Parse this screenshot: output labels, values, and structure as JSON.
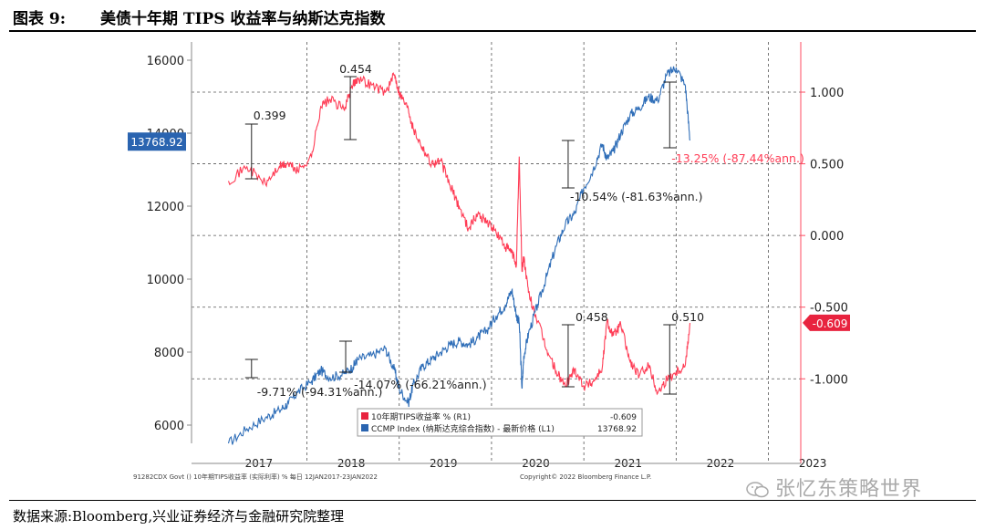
{
  "header": {
    "figure_label": "图表 9:",
    "title": "美债十年期 TIPS 收益率与纳斯达克指数"
  },
  "footer": {
    "source": "数据来源:Bloomberg,兴业证券经济与金融研究院整理",
    "watermark": "张忆东策略世界"
  },
  "chart_data": {
    "type": "line",
    "title": "",
    "x_ticks": [
      "2017",
      "2018",
      "2019",
      "2020",
      "2021",
      "2022",
      "2023"
    ],
    "left_axis": {
      "ticks": [
        "16000",
        "14000",
        "12000",
        "10000",
        "8000",
        "6000"
      ],
      "ylim": [
        5500,
        16500
      ]
    },
    "right_axis": {
      "ticks": [
        "1.000",
        "0.500",
        "0.000",
        "-0.500",
        "-1.000"
      ],
      "ylim": [
        -1.45,
        1.35
      ]
    },
    "series": [
      {
        "name": "10年期TIPS收益率 % (R1)",
        "axis": "right",
        "color": "#ff3c55",
        "last_value": "-0.609",
        "x": [
          2017.05,
          2017.25,
          2017.45,
          2017.6,
          2017.7,
          2017.8,
          2017.95,
          2018.05,
          2018.15,
          2018.3,
          2018.4,
          2018.45,
          2018.6,
          2018.75,
          2018.85,
          2018.9,
          2019.0,
          2019.05,
          2019.15,
          2019.25,
          2019.35,
          2019.45,
          2019.55,
          2019.65,
          2019.75,
          2019.85,
          2019.95,
          2020.05,
          2020.12,
          2020.17,
          2020.2,
          2020.23,
          2020.25,
          2020.3,
          2020.4,
          2020.5,
          2020.6,
          2020.7,
          2020.8,
          2020.9,
          2021.0,
          2021.1,
          2021.15,
          2021.22,
          2021.3,
          2021.4,
          2021.5,
          2021.6,
          2021.7,
          2021.8,
          2021.9,
          2022.0,
          2022.05
        ],
        "y": [
          0.38,
          0.48,
          0.36,
          0.48,
          0.5,
          0.45,
          0.55,
          0.9,
          0.95,
          0.88,
          1.05,
          1.1,
          1.05,
          1.0,
          1.12,
          1.0,
          0.88,
          0.75,
          0.62,
          0.5,
          0.52,
          0.35,
          0.2,
          0.05,
          0.15,
          0.1,
          0.02,
          -0.08,
          -0.12,
          -0.2,
          0.55,
          -0.25,
          -0.15,
          -0.4,
          -0.6,
          -0.8,
          -0.95,
          -1.05,
          -0.93,
          -1.05,
          -1.02,
          -0.92,
          -0.6,
          -0.7,
          -0.62,
          -0.88,
          -0.98,
          -0.9,
          -1.1,
          -1.0,
          -0.95,
          -0.9,
          -0.61
        ]
      },
      {
        "name": "CCMP Index (纳斯达克综合指数) - 最新价格 (L1)",
        "axis": "left",
        "color": "#2f6eb8",
        "last_value": "13768.92",
        "x": [
          2017.05,
          2017.25,
          2017.45,
          2017.6,
          2017.7,
          2017.8,
          2017.95,
          2018.05,
          2018.15,
          2018.3,
          2018.4,
          2018.45,
          2018.6,
          2018.75,
          2018.85,
          2018.9,
          2019.0,
          2019.05,
          2019.15,
          2019.25,
          2019.35,
          2019.45,
          2019.55,
          2019.65,
          2019.75,
          2019.85,
          2019.95,
          2020.05,
          2020.12,
          2020.17,
          2020.2,
          2020.23,
          2020.25,
          2020.3,
          2020.4,
          2020.5,
          2020.6,
          2020.7,
          2020.8,
          2020.9,
          2021.0,
          2021.1,
          2021.15,
          2021.22,
          2021.3,
          2021.4,
          2021.5,
          2021.6,
          2021.7,
          2021.8,
          2021.9,
          2022.0,
          2022.05
        ],
        "y": [
          5500,
          5900,
          6200,
          6400,
          6600,
          6900,
          7200,
          7500,
          7300,
          7400,
          7600,
          7800,
          7900,
          8100,
          7500,
          7000,
          6600,
          7100,
          7600,
          7800,
          8000,
          8200,
          8300,
          8200,
          8400,
          8600,
          9000,
          9300,
          9700,
          9000,
          8800,
          7000,
          7900,
          8500,
          9300,
          10100,
          10900,
          11500,
          11800,
          12500,
          13000,
          13700,
          13300,
          13500,
          14000,
          14500,
          14700,
          15000,
          14900,
          15600,
          15800,
          15300,
          13800
        ]
      }
    ],
    "annotations": [
      "0.399",
      "0.454",
      "0.458",
      "0.510",
      "-9.71% (-94.31%ann.)",
      "-14.07% (-66.21%ann.)",
      "-10.54% (-81.63%ann.)",
      "-13.25% (-87.44%ann.)"
    ],
    "value_flags": {
      "left": "13768.92",
      "right": "-0.609"
    },
    "legend": [
      {
        "label": "10年期TIPS收益率 % (R1)",
        "value": "-0.609",
        "color": "#e8233f"
      },
      {
        "label": "CCMP Index (纳斯达克综合指数) - 最新价格 (L1)",
        "value": "13768.92",
        "color": "#2a64b0"
      }
    ],
    "bottom_left_text": "91282CDX Govt () 10年期TIPS收益率 (实际利率) % 每日 12JAN2017-23JAN2022",
    "bottom_center_text": "Copyright© 2022 Bloomberg Finance L.P."
  }
}
